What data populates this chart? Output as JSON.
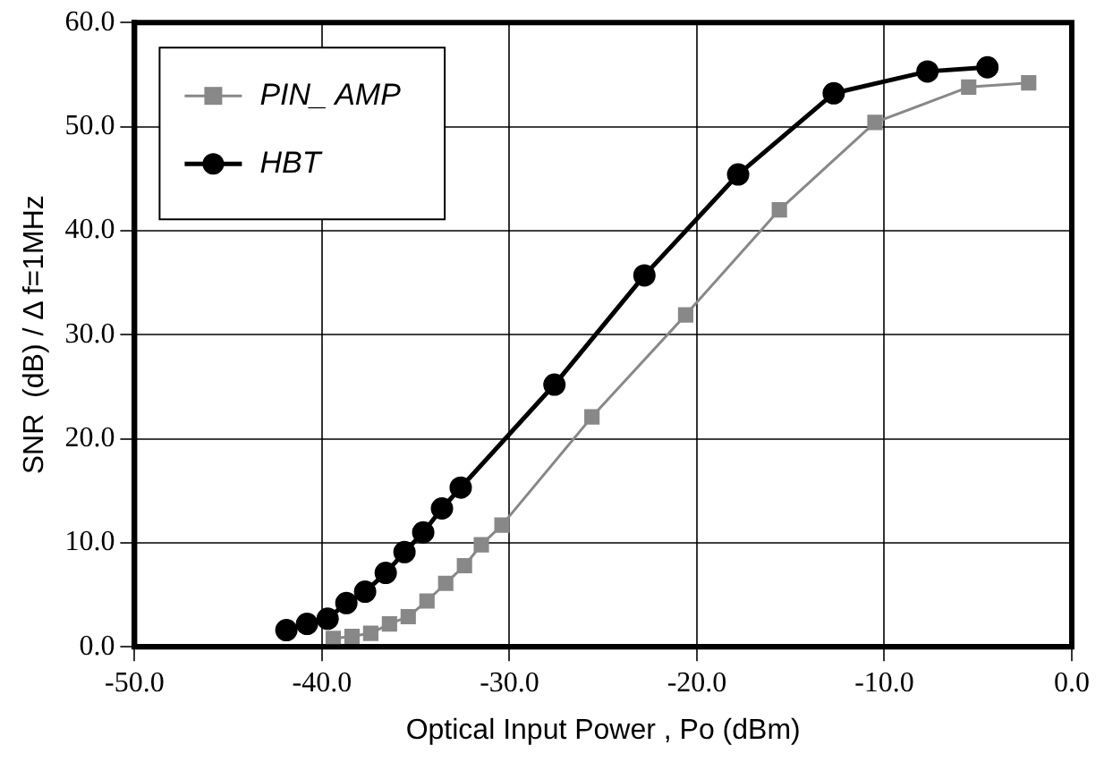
{
  "chart_data": {
    "type": "line",
    "xlabel": "Optical Input Power , Po (dBm)",
    "ylabel": "SNR  (dB) / Δ f=1MHz",
    "xlim": [
      -50,
      0
    ],
    "ylim": [
      0,
      60
    ],
    "xticks": [
      {
        "value": -50,
        "label": "-50.0"
      },
      {
        "value": -40,
        "label": "-40.0"
      },
      {
        "value": -30,
        "label": "-30.0"
      },
      {
        "value": -20,
        "label": "-20.0"
      },
      {
        "value": -10,
        "label": "-10.0"
      },
      {
        "value": 0,
        "label": "0.0"
      }
    ],
    "yticks": [
      {
        "value": 0,
        "label": "0.0"
      },
      {
        "value": 10,
        "label": "10.0"
      },
      {
        "value": 20,
        "label": "20.0"
      },
      {
        "value": 30,
        "label": "30.0"
      },
      {
        "value": 40,
        "label": "40.0"
      },
      {
        "value": 50,
        "label": "50.0"
      },
      {
        "value": 60,
        "label": "60.0"
      }
    ],
    "grid": true,
    "legend": "top left",
    "line_style": "solid",
    "series": [
      {
        "name": "PIN_ AMP",
        "color": "#888888",
        "marker": "square",
        "x": [
          -39.4,
          -38.4,
          -37.4,
          -36.4,
          -35.4,
          -34.4,
          -33.4,
          -32.4,
          -31.5,
          -30.4,
          -25.6,
          -20.6,
          -15.6,
          -10.5,
          -5.5,
          -2.3
        ],
        "values": [
          0.8,
          1.0,
          1.3,
          2.2,
          2.9,
          4.4,
          6.1,
          7.8,
          9.8,
          11.7,
          22.1,
          31.9,
          42.0,
          50.4,
          53.8,
          54.2
        ]
      },
      {
        "name": "HBT",
        "color": "#000000",
        "marker": "circle",
        "x": [
          -41.9,
          -40.8,
          -39.7,
          -38.7,
          -37.7,
          -36.6,
          -35.6,
          -34.6,
          -33.6,
          -32.6,
          -27.6,
          -22.8,
          -17.8,
          -12.7,
          -7.7,
          -4.5
        ],
        "values": [
          1.6,
          2.2,
          2.7,
          4.2,
          5.3,
          7.1,
          9.1,
          11.0,
          13.3,
          15.3,
          25.2,
          35.7,
          45.4,
          53.2,
          55.3,
          55.7
        ]
      }
    ]
  }
}
